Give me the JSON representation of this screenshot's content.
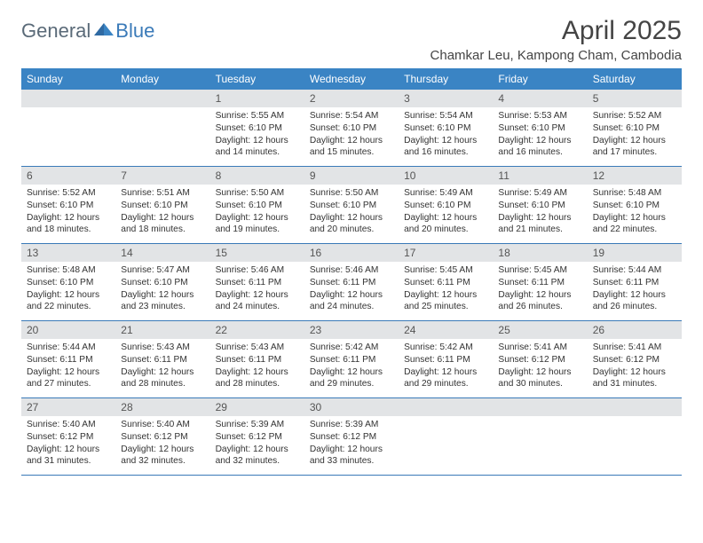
{
  "logo": {
    "general": "General",
    "blue": "Blue"
  },
  "title": "April 2025",
  "location": "Chamkar Leu, Kampong Cham, Cambodia",
  "colors": {
    "header_bg": "#3a84c4",
    "daynum_bg": "#e2e4e6",
    "week_border": "#3a7ab8",
    "logo_general": "#5a6a78",
    "logo_blue": "#3a7ab8"
  },
  "weekdays": [
    "Sunday",
    "Monday",
    "Tuesday",
    "Wednesday",
    "Thursday",
    "Friday",
    "Saturday"
  ],
  "weeks": [
    [
      {
        "num": "",
        "sunrise": "",
        "sunset": "",
        "daylight": ""
      },
      {
        "num": "",
        "sunrise": "",
        "sunset": "",
        "daylight": ""
      },
      {
        "num": "1",
        "sunrise": "Sunrise: 5:55 AM",
        "sunset": "Sunset: 6:10 PM",
        "daylight": "Daylight: 12 hours and 14 minutes."
      },
      {
        "num": "2",
        "sunrise": "Sunrise: 5:54 AM",
        "sunset": "Sunset: 6:10 PM",
        "daylight": "Daylight: 12 hours and 15 minutes."
      },
      {
        "num": "3",
        "sunrise": "Sunrise: 5:54 AM",
        "sunset": "Sunset: 6:10 PM",
        "daylight": "Daylight: 12 hours and 16 minutes."
      },
      {
        "num": "4",
        "sunrise": "Sunrise: 5:53 AM",
        "sunset": "Sunset: 6:10 PM",
        "daylight": "Daylight: 12 hours and 16 minutes."
      },
      {
        "num": "5",
        "sunrise": "Sunrise: 5:52 AM",
        "sunset": "Sunset: 6:10 PM",
        "daylight": "Daylight: 12 hours and 17 minutes."
      }
    ],
    [
      {
        "num": "6",
        "sunrise": "Sunrise: 5:52 AM",
        "sunset": "Sunset: 6:10 PM",
        "daylight": "Daylight: 12 hours and 18 minutes."
      },
      {
        "num": "7",
        "sunrise": "Sunrise: 5:51 AM",
        "sunset": "Sunset: 6:10 PM",
        "daylight": "Daylight: 12 hours and 18 minutes."
      },
      {
        "num": "8",
        "sunrise": "Sunrise: 5:50 AM",
        "sunset": "Sunset: 6:10 PM",
        "daylight": "Daylight: 12 hours and 19 minutes."
      },
      {
        "num": "9",
        "sunrise": "Sunrise: 5:50 AM",
        "sunset": "Sunset: 6:10 PM",
        "daylight": "Daylight: 12 hours and 20 minutes."
      },
      {
        "num": "10",
        "sunrise": "Sunrise: 5:49 AM",
        "sunset": "Sunset: 6:10 PM",
        "daylight": "Daylight: 12 hours and 20 minutes."
      },
      {
        "num": "11",
        "sunrise": "Sunrise: 5:49 AM",
        "sunset": "Sunset: 6:10 PM",
        "daylight": "Daylight: 12 hours and 21 minutes."
      },
      {
        "num": "12",
        "sunrise": "Sunrise: 5:48 AM",
        "sunset": "Sunset: 6:10 PM",
        "daylight": "Daylight: 12 hours and 22 minutes."
      }
    ],
    [
      {
        "num": "13",
        "sunrise": "Sunrise: 5:48 AM",
        "sunset": "Sunset: 6:10 PM",
        "daylight": "Daylight: 12 hours and 22 minutes."
      },
      {
        "num": "14",
        "sunrise": "Sunrise: 5:47 AM",
        "sunset": "Sunset: 6:10 PM",
        "daylight": "Daylight: 12 hours and 23 minutes."
      },
      {
        "num": "15",
        "sunrise": "Sunrise: 5:46 AM",
        "sunset": "Sunset: 6:11 PM",
        "daylight": "Daylight: 12 hours and 24 minutes."
      },
      {
        "num": "16",
        "sunrise": "Sunrise: 5:46 AM",
        "sunset": "Sunset: 6:11 PM",
        "daylight": "Daylight: 12 hours and 24 minutes."
      },
      {
        "num": "17",
        "sunrise": "Sunrise: 5:45 AM",
        "sunset": "Sunset: 6:11 PM",
        "daylight": "Daylight: 12 hours and 25 minutes."
      },
      {
        "num": "18",
        "sunrise": "Sunrise: 5:45 AM",
        "sunset": "Sunset: 6:11 PM",
        "daylight": "Daylight: 12 hours and 26 minutes."
      },
      {
        "num": "19",
        "sunrise": "Sunrise: 5:44 AM",
        "sunset": "Sunset: 6:11 PM",
        "daylight": "Daylight: 12 hours and 26 minutes."
      }
    ],
    [
      {
        "num": "20",
        "sunrise": "Sunrise: 5:44 AM",
        "sunset": "Sunset: 6:11 PM",
        "daylight": "Daylight: 12 hours and 27 minutes."
      },
      {
        "num": "21",
        "sunrise": "Sunrise: 5:43 AM",
        "sunset": "Sunset: 6:11 PM",
        "daylight": "Daylight: 12 hours and 28 minutes."
      },
      {
        "num": "22",
        "sunrise": "Sunrise: 5:43 AM",
        "sunset": "Sunset: 6:11 PM",
        "daylight": "Daylight: 12 hours and 28 minutes."
      },
      {
        "num": "23",
        "sunrise": "Sunrise: 5:42 AM",
        "sunset": "Sunset: 6:11 PM",
        "daylight": "Daylight: 12 hours and 29 minutes."
      },
      {
        "num": "24",
        "sunrise": "Sunrise: 5:42 AM",
        "sunset": "Sunset: 6:11 PM",
        "daylight": "Daylight: 12 hours and 29 minutes."
      },
      {
        "num": "25",
        "sunrise": "Sunrise: 5:41 AM",
        "sunset": "Sunset: 6:12 PM",
        "daylight": "Daylight: 12 hours and 30 minutes."
      },
      {
        "num": "26",
        "sunrise": "Sunrise: 5:41 AM",
        "sunset": "Sunset: 6:12 PM",
        "daylight": "Daylight: 12 hours and 31 minutes."
      }
    ],
    [
      {
        "num": "27",
        "sunrise": "Sunrise: 5:40 AM",
        "sunset": "Sunset: 6:12 PM",
        "daylight": "Daylight: 12 hours and 31 minutes."
      },
      {
        "num": "28",
        "sunrise": "Sunrise: 5:40 AM",
        "sunset": "Sunset: 6:12 PM",
        "daylight": "Daylight: 12 hours and 32 minutes."
      },
      {
        "num": "29",
        "sunrise": "Sunrise: 5:39 AM",
        "sunset": "Sunset: 6:12 PM",
        "daylight": "Daylight: 12 hours and 32 minutes."
      },
      {
        "num": "30",
        "sunrise": "Sunrise: 5:39 AM",
        "sunset": "Sunset: 6:12 PM",
        "daylight": "Daylight: 12 hours and 33 minutes."
      },
      {
        "num": "",
        "sunrise": "",
        "sunset": "",
        "daylight": ""
      },
      {
        "num": "",
        "sunrise": "",
        "sunset": "",
        "daylight": ""
      },
      {
        "num": "",
        "sunrise": "",
        "sunset": "",
        "daylight": ""
      }
    ]
  ]
}
